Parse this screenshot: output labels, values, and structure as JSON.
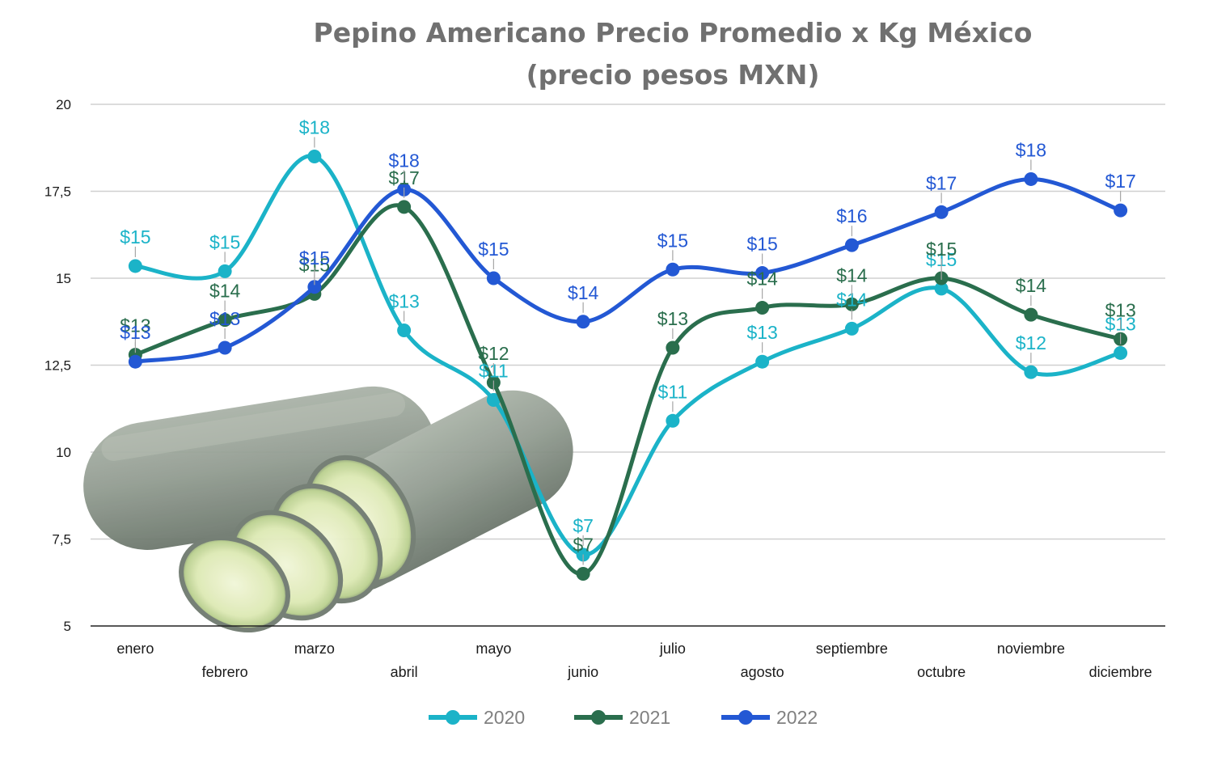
{
  "chart_data": {
    "type": "line",
    "title_line1": "Pepino Americano Precio Promedio x Kg México",
    "title_line2": "(precio pesos MXN)",
    "xlabel": "",
    "ylabel": "",
    "ylim": [
      5,
      20
    ],
    "yticks": [
      "5",
      "7,5",
      "10",
      "12,5",
      "15",
      "17,5",
      "20"
    ],
    "categories": [
      "enero",
      "febrero",
      "marzo",
      "abril",
      "mayo",
      "junio",
      "julio",
      "agosto",
      "septiembre",
      "octubre",
      "noviembre",
      "diciembre"
    ],
    "grid": true,
    "legend_position": "bottom",
    "series": [
      {
        "name": "2020",
        "color": "#1bb3c8",
        "values": [
          15.35,
          15.2,
          18.5,
          13.5,
          11.5,
          7.05,
          10.9,
          12.6,
          13.55,
          14.7,
          12.3,
          12.85
        ],
        "labels": [
          "$15",
          "$15",
          "$18",
          "$13",
          "$11",
          "$7",
          "$11",
          "$13",
          "$14",
          "$15",
          "$12",
          "$13"
        ]
      },
      {
        "name": "2021",
        "color": "#2a6e4d",
        "values": [
          12.8,
          13.8,
          14.55,
          17.05,
          12.0,
          6.5,
          13.0,
          14.15,
          14.25,
          15.0,
          13.95,
          13.25
        ],
        "labels": [
          "$13",
          "$14",
          "$15",
          "$17",
          "$12",
          "$7",
          "$13",
          "$14",
          "$14",
          "$15",
          "$14",
          "$13"
        ]
      },
      {
        "name": "2022",
        "color": "#2358d4",
        "values": [
          12.6,
          13.0,
          14.75,
          17.55,
          15.0,
          13.75,
          15.25,
          15.15,
          15.95,
          16.9,
          17.85,
          16.95
        ],
        "labels": [
          "$13",
          "$13",
          "$15",
          "$18",
          "$15",
          "$14",
          "$15",
          "$15",
          "$16",
          "$17",
          "$18",
          "$17"
        ]
      }
    ]
  },
  "image": {
    "icon": "cucumber-illustration",
    "colors": {
      "skin": "#8f9a8f",
      "skin_dark": "#6f7a6f",
      "flesh": "#e6efc4",
      "flesh_ring": "#a9c08a"
    }
  }
}
